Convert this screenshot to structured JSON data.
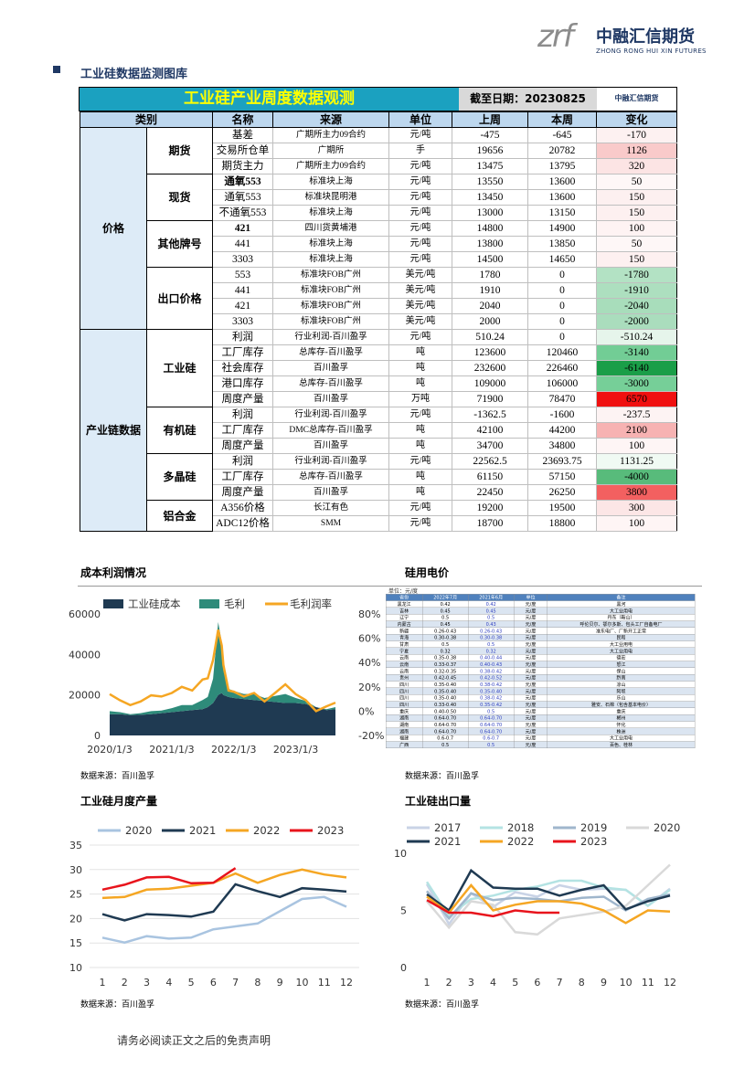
{
  "header": {
    "logo_mark": "zrf",
    "logo_cn": "中融汇信期货",
    "logo_en": "ZHONG RONG HUI XIN FUTURES"
  },
  "section_title": "工业硅数据监测图库",
  "table": {
    "title": "工业硅产业周度数据观测",
    "date": "截至日期：20230825",
    "logo": "中融汇信期货",
    "columns": [
      "类别",
      "名称",
      "来源",
      "单位",
      "上周",
      "本周",
      "变化"
    ],
    "groups": [
      {
        "label": "价格",
        "subgroups": [
          {
            "label": "期货",
            "rows": [
              {
                "name": "基差",
                "source": "广期所主力09合约",
                "unit": "元/吨",
                "last": "-475",
                "this": "-645",
                "change": "-170",
                "change_color": "#fdf1f1"
              },
              {
                "name": "交易所仓单",
                "source": "广期所",
                "unit": "手",
                "last": "19656",
                "this": "20782",
                "change": "1126",
                "change_color": "#f9caca"
              },
              {
                "name": "期货主力",
                "source": "广期所主力09合约",
                "unit": "元/吨",
                "last": "13475",
                "this": "13795",
                "change": "320",
                "change_color": "#fce4e4"
              }
            ]
          },
          {
            "label": "现货",
            "rows": [
              {
                "name": "通氧553",
                "bold": true,
                "source": "标准块上海",
                "unit": "元/吨",
                "last": "13550",
                "this": "13600",
                "change": "50",
                "change_color": "#fef7f7"
              },
              {
                "name": "通氧553",
                "source": "标准块昆明港",
                "unit": "元/吨",
                "last": "13450",
                "this": "13600",
                "change": "150",
                "change_color": "#fdf0f0"
              },
              {
                "name": "不通氧553",
                "source": "标准块上海",
                "unit": "元/吨",
                "last": "13000",
                "this": "13150",
                "change": "150",
                "change_color": "#fdf0f0"
              }
            ]
          },
          {
            "label": "其他牌号",
            "rows": [
              {
                "name": "421",
                "bold": true,
                "source": "四川货黄埔港",
                "unit": "元/吨",
                "last": "14800",
                "this": "14900",
                "change": "100",
                "change_color": "#fef3f3"
              },
              {
                "name": "441",
                "source": "标准块上海",
                "unit": "元/吨",
                "last": "13800",
                "this": "13850",
                "change": "50",
                "change_color": "#fef7f7"
              },
              {
                "name": "3303",
                "source": "标准块上海",
                "unit": "元/吨",
                "last": "14500",
                "this": "14650",
                "change": "150",
                "change_color": "#fdf0f0"
              }
            ]
          },
          {
            "label": "出口价格",
            "rows": [
              {
                "name": "553",
                "source": "标准块FOB广州",
                "unit": "美元/吨",
                "last": "1780",
                "this": "0",
                "change": "-1780",
                "change_color": "#b3e2c4"
              },
              {
                "name": "441",
                "source": "标准块FOB广州",
                "unit": "美元/吨",
                "last": "1910",
                "this": "0",
                "change": "-1910",
                "change_color": "#addfbf"
              },
              {
                "name": "421",
                "source": "标准块FOB广州",
                "unit": "美元/吨",
                "last": "2040",
                "this": "0",
                "change": "-2040",
                "change_color": "#a8ddbb"
              },
              {
                "name": "3303",
                "source": "标准块FOB广州",
                "unit": "美元/吨",
                "last": "2000",
                "this": "0",
                "change": "-2000",
                "change_color": "#aaddbd"
              }
            ]
          }
        ]
      },
      {
        "label": "产业链数据",
        "subgroups": [
          {
            "label": "工业硅",
            "rows": [
              {
                "name": "利润",
                "source": "行业利润-百川盈孚",
                "unit": "元/吨",
                "last": "510.24",
                "this": "0",
                "change": "-510.24",
                "change_color": "#e6f5eb"
              },
              {
                "name": "工厂库存",
                "source": "总库存-百川盈孚",
                "unit": "吨",
                "last": "123600",
                "this": "120460",
                "change": "-3140",
                "change_color": "#72cd95"
              },
              {
                "name": "社会库存",
                "source": "百川盈孚",
                "unit": "吨",
                "last": "232600",
                "this": "226460",
                "change": "-6140",
                "change_color": "#1a9e48"
              },
              {
                "name": "港口库存",
                "source": "总库存-百川盈孚",
                "unit": "吨",
                "last": "109000",
                "this": "106000",
                "change": "-3000",
                "change_color": "#76cf98"
              },
              {
                "name": "周度产量",
                "source": "百川盈孚",
                "unit": "万吨",
                "last": "71900",
                "this": "78470",
                "change": "6570",
                "change_color": "#f01010"
              }
            ]
          },
          {
            "label": "有机硅",
            "rows": [
              {
                "name": "利润",
                "source": "行业利润-百川盈孚",
                "unit": "元/吨",
                "last": "-1362.5",
                "this": "-1600",
                "change": "-237.5",
                "change_color": "#fdf3f3"
              },
              {
                "name": "工厂库存",
                "source": "DMC总库存-百川盈孚",
                "unit": "吨",
                "last": "42100",
                "this": "44200",
                "change": "2100",
                "change_color": "#f7b2b2"
              },
              {
                "name": "周度产量",
                "source": "百川盈孚",
                "unit": "吨",
                "last": "34700",
                "this": "34800",
                "change": "100",
                "change_color": "#fef5f5"
              }
            ]
          },
          {
            "label": "多晶硅",
            "rows": [
              {
                "name": "利润",
                "source": "行业利润-百川盈孚",
                "unit": "元/吨",
                "last": "22562.5",
                "this": "23693.75",
                "change": "1131.25",
                "change_color": "#f0faf3"
              },
              {
                "name": "工厂库存",
                "source": "总库存-百川盈孚",
                "unit": "吨",
                "last": "61150",
                "this": "57150",
                "change": "-4000",
                "change_color": "#58bb7b"
              },
              {
                "name": "周度产量",
                "source": "百川盈孚",
                "unit": "吨",
                "last": "22450",
                "this": "26250",
                "change": "3800",
                "change_color": "#f36060"
              }
            ]
          },
          {
            "label": "铝合金",
            "rows": [
              {
                "name": "A356价格",
                "source": "长江有色",
                "unit": "元/吨",
                "last": "19200",
                "this": "19500",
                "change": "300",
                "change_color": "#fce6e6"
              },
              {
                "name": "ADC12价格",
                "source": "SMM",
                "unit": "元/吨",
                "last": "18700",
                "this": "18800",
                "change": "100",
                "change_color": "#fef5f5"
              }
            ]
          }
        ]
      }
    ]
  },
  "power_table": {
    "title": "硅用电价",
    "unit": "单位：元/度",
    "note": "数据来源：百川盈孚",
    "columns": [
      "省份",
      "2022年7月",
      "2021年6月",
      "单位",
      "备注"
    ],
    "rows": [
      [
        "黑龙江",
        "0.42",
        "0.42",
        "元/度",
        "黑河"
      ],
      [
        "吉林",
        "0.45",
        "0.45",
        "元/度",
        "大工业用电"
      ],
      [
        "辽宁",
        "0.5",
        "0.5",
        "元/度",
        "丹东（鞍山）"
      ],
      [
        "内蒙古",
        "0.45",
        "0.43",
        "元/度",
        "呼伦贝尔、鄂尔多斯、包头工厂自备电厂"
      ],
      [
        "新疆",
        "0.26-0.43",
        "0.26-0.43",
        "元/度",
        "准东电厂、厂新开工正常"
      ],
      [
        "青海",
        "0.30-0.38",
        "0.30-0.38",
        "元/度",
        "民和"
      ],
      [
        "甘肃",
        "0.5",
        "0.5",
        "元/度",
        "大工业用电"
      ],
      [
        "宁夏",
        "0.32",
        "0.32",
        "元/度",
        "大工业用电"
      ],
      [
        "云南",
        "0.35-0.38",
        "0.40-0.44",
        "元/度",
        "德宏"
      ],
      [
        "云南",
        "0.33-0.37",
        "0.40-0.43",
        "元/度",
        "怒江"
      ],
      [
        "云南",
        "0.32-0.35",
        "0.38-0.42",
        "元/度",
        "保山"
      ],
      [
        "贵州",
        "0.42-0.45",
        "0.42-0.52",
        "元/度",
        "黔南"
      ],
      [
        "四川",
        "0.35-0.40",
        "0.38-0.42",
        "元/度",
        "凉山"
      ],
      [
        "四川",
        "0.35-0.40",
        "0.35-0.40",
        "元/度",
        "阿坝"
      ],
      [
        "四川",
        "0.35-0.40",
        "0.38-0.42",
        "元/度",
        "乐山"
      ],
      [
        "四川",
        "0.33-0.40",
        "0.35-0.42",
        "元/度",
        "雅安、石棉（包含基本电价）"
      ],
      [
        "重庆",
        "0.40-0.50",
        "0.5",
        "元/度",
        "重庆"
      ],
      [
        "湖南",
        "0.64-0.70",
        "0.64-0.70",
        "元/度",
        "郴州"
      ],
      [
        "湖南",
        "0.64-0.70",
        "0.64-0.70",
        "元/度",
        "怀化"
      ],
      [
        "湖南",
        "0.64-0.70",
        "0.64-0.70",
        "元/度",
        "株洲"
      ],
      [
        "福建",
        "0.6-0.7",
        "0.6-0.7",
        "元/度",
        "大工业用电"
      ],
      [
        "广西",
        "0.5",
        "0.5",
        "元/度",
        "百色、桂林"
      ]
    ]
  },
  "chart_data": [
    {
      "type": "area",
      "title": "成本利润情况",
      "note": "数据来源：百川盈孚",
      "stacked": true,
      "legend": "top",
      "grid": false,
      "x": [
        "2020/1/3",
        "2020/3/3",
        "2020/5/3",
        "2020/7/3",
        "2020/9/3",
        "2020/11/3",
        "2021/1/3",
        "2021/3/3",
        "2021/5/3",
        "2021/7/3",
        "2021/8/3",
        "2021/9/3",
        "2021/10/3",
        "2021/10/24",
        "2021/11/3",
        "2021/12/3",
        "2022/1/3",
        "2022/3/3",
        "2022/5/3",
        "2022/7/3",
        "2022/9/3",
        "2022/11/3",
        "2023/1/3",
        "2023/3/3",
        "2023/5/3",
        "2023/7/3",
        "2023/8/25"
      ],
      "xlim": [
        "2020/1/3",
        "2023/8/25"
      ],
      "xticks": [
        "2020/1/3",
        "2021/1/3",
        "2022/1/3",
        "2023/1/3"
      ],
      "ylim": [
        0,
        60000
      ],
      "yticks": [
        0,
        20000,
        40000,
        60000
      ],
      "y2lim": [
        -20,
        80
      ],
      "y2ticks": [
        {
          "value": -20,
          "label": "-20%"
        },
        {
          "value": 0,
          "label": "0%"
        },
        {
          "value": 20,
          "label": "20%"
        },
        {
          "value": 40,
          "label": "40%"
        },
        {
          "value": 60,
          "label": "60%"
        },
        {
          "value": 80,
          "label": "80%"
        }
      ],
      "series": [
        {
          "name": "工业硅成本",
          "color": "#1f3a52",
          "values": [
            10500,
            10500,
            10000,
            10200,
            10500,
            11000,
            11500,
            12000,
            12500,
            13000,
            14000,
            16000,
            20000,
            21000,
            20000,
            19000,
            18500,
            18000,
            17500,
            17000,
            16500,
            16000,
            16000,
            15500,
            14000,
            12500,
            13000
          ]
        },
        {
          "name": "毛利",
          "color": "#2e8b7a",
          "values": [
            1500,
            1000,
            500,
            800,
            1500,
            1300,
            2000,
            3000,
            2500,
            4500,
            5000,
            12000,
            36000,
            25000,
            12000,
            4000,
            3500,
            2500,
            3000,
            1500,
            3000,
            4500,
            2500,
            1500,
            0,
            500,
            1000
          ]
        },
        {
          "name": "毛利润率",
          "color": "#f5a623",
          "axis": "y2",
          "values": [
            14,
            9,
            5,
            8,
            13,
            12,
            15,
            20,
            17,
            26,
            27,
            42,
            67,
            54,
            38,
            17,
            16,
            12,
            15,
            8,
            15,
            22,
            14,
            9,
            0,
            4,
            7
          ]
        }
      ]
    },
    {
      "type": "line",
      "title": "工业硅月度产量",
      "note": "数据来源：百川盈孚",
      "legend": "top",
      "grid": true,
      "categories": [
        "1",
        "2",
        "3",
        "4",
        "5",
        "6",
        "7",
        "8",
        "9",
        "10",
        "11",
        "12"
      ],
      "ylim": [
        10,
        35
      ],
      "yticks": [
        10,
        15,
        20,
        25,
        30,
        35
      ],
      "series": [
        {
          "name": "2020",
          "color": "#a9c4e0",
          "values": [
            16.1,
            15.1,
            16.4,
            15.9,
            16.1,
            17.8,
            18.4,
            19.0,
            21.5,
            24.0,
            24.4,
            22.4
          ]
        },
        {
          "name": "2021",
          "color": "#1f3a52",
          "values": [
            20.9,
            19.6,
            20.9,
            20.7,
            20.4,
            21.4,
            27.0,
            25.6,
            24.4,
            26.2,
            25.9,
            25.5
          ]
        },
        {
          "name": "2022",
          "color": "#f5a623",
          "values": [
            24.2,
            24.4,
            25.9,
            26.1,
            26.7,
            27.3,
            29.2,
            27.3,
            28.9,
            30.0,
            29.0,
            28.4
          ]
        },
        {
          "name": "2023",
          "color": "#e8141c",
          "values": [
            25.9,
            26.9,
            28.4,
            28.5,
            27.2,
            27.3,
            30.3,
            null,
            null,
            null,
            null,
            null
          ]
        }
      ]
    },
    {
      "type": "line",
      "title": "工业硅出口量",
      "note": "数据来源：百川盈孚",
      "legend": "top",
      "grid": false,
      "categories": [
        "1",
        "2",
        "3",
        "4",
        "5",
        "6",
        "7",
        "8",
        "9",
        "10",
        "11",
        "12"
      ],
      "ylim": [
        0,
        10
      ],
      "yticks": [
        0,
        5,
        10
      ],
      "series": [
        {
          "name": "2017",
          "color": "#c9d3e6",
          "values": [
            7.3,
            3.8,
            6.5,
            5.3,
            6.6,
            6.2,
            7.2,
            6.8,
            6.9,
            6.8,
            5.4,
            6.9
          ]
        },
        {
          "name": "2018",
          "color": "#b4e3e3",
          "values": [
            7.5,
            4.5,
            6.0,
            6.3,
            6.8,
            7.1,
            7.6,
            7.6,
            7.0,
            6.8,
            5.4,
            6.8
          ]
        },
        {
          "name": "2019",
          "color": "#9fb6cc",
          "values": [
            6.7,
            4.3,
            6.5,
            5.9,
            6.1,
            6.0,
            5.8,
            6.1,
            6.2,
            5.0,
            6.0,
            6.4
          ]
        },
        {
          "name": "2020",
          "color": "#d9d9d9",
          "values": [
            5.8,
            3.5,
            5.8,
            5.5,
            3.1,
            2.9,
            4.3,
            4.6,
            4.9,
            5.4,
            7.2,
            9.0
          ]
        },
        {
          "name": "2021",
          "color": "#1f3a52",
          "values": [
            6.4,
            5.0,
            8.5,
            7.0,
            6.9,
            6.9,
            6.3,
            6.8,
            7.2,
            5.1,
            5.8,
            6.3
          ]
        },
        {
          "name": "2022",
          "color": "#f5a623",
          "values": [
            6.2,
            4.8,
            7.2,
            5.0,
            5.5,
            5.8,
            5.8,
            5.6,
            5.0,
            3.9,
            5.0,
            4.9
          ]
        },
        {
          "name": "2023",
          "color": "#e8141c",
          "values": [
            5.9,
            4.8,
            4.8,
            4.5,
            5.0,
            4.8,
            4.8,
            null,
            null,
            null,
            null,
            null
          ]
        }
      ]
    }
  ],
  "footer": "请务必阅读正文之后的免责声明"
}
